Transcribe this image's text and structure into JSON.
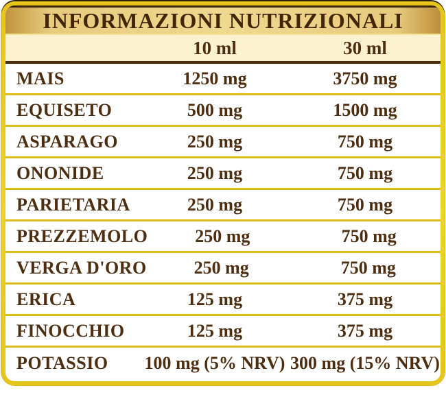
{
  "table": {
    "title": "INFORMAZIONI NUTRIZIONALI",
    "column_headers": [
      "10 ml",
      "30 ml"
    ],
    "rows": [
      {
        "label": "MAIS",
        "per_10ml": "1250 mg",
        "per_30ml": "3750 mg"
      },
      {
        "label": "EQUISETO",
        "per_10ml": "500 mg",
        "per_30ml": "1500 mg"
      },
      {
        "label": "ASPARAGO",
        "per_10ml": "250 mg",
        "per_30ml": "750 mg"
      },
      {
        "label": "ONONIDE",
        "per_10ml": "250 mg",
        "per_30ml": "750 mg"
      },
      {
        "label": "PARIETARIA",
        "per_10ml": "250 mg",
        "per_30ml": "750 mg"
      },
      {
        "label": "PREZZEMOLO",
        "per_10ml": "250 mg",
        "per_30ml": "750 mg"
      },
      {
        "label": "VERGA D'ORO",
        "per_10ml": "250 mg",
        "per_30ml": "750 mg"
      },
      {
        "label": "ERICA",
        "per_10ml": "125 mg",
        "per_30ml": "375 mg"
      },
      {
        "label": "FINOCCHIO",
        "per_10ml": "125 mg",
        "per_30ml": "375 mg"
      },
      {
        "label": "POTASSIO",
        "per_10ml": "100 mg (5% NRV)",
        "per_30ml": "300 mg (15% NRV)"
      }
    ]
  },
  "colors": {
    "frame_gold": "#E5C41C",
    "band_gold_edge": "#C2943C",
    "band_gold_center": "#EFD98F",
    "top_line_brown": "#3A2405",
    "header_bg_cream": "#FCF2CF",
    "header_rule_brown": "#4A2D0E",
    "row_separator_gold": "#DFBE17",
    "text_brown": "#4D2E11",
    "row_bg_white": "#FFFFFF"
  }
}
